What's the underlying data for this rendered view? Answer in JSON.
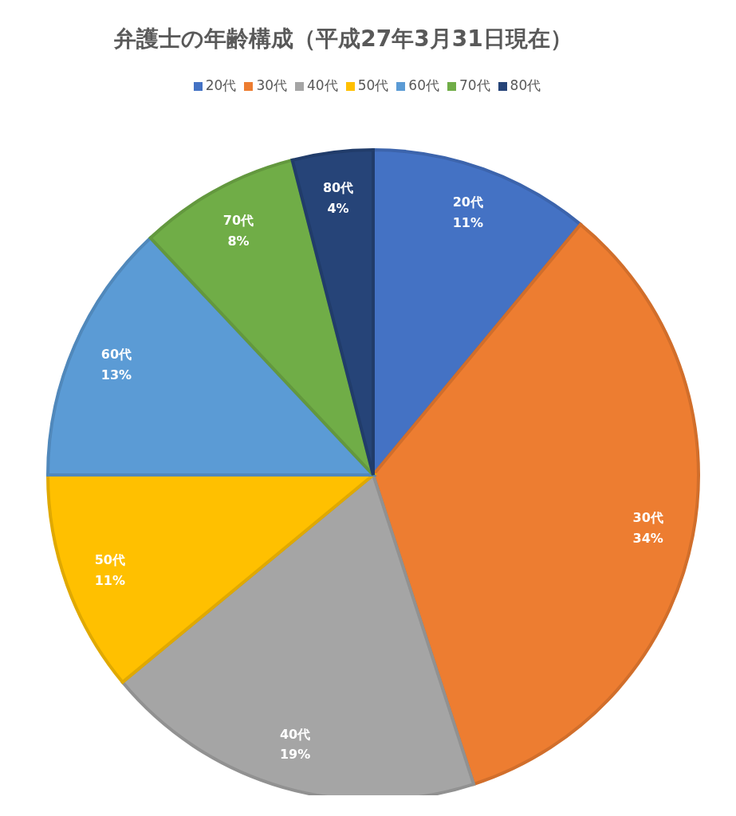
{
  "chart_data": {
    "type": "pie",
    "title": "弁護士の年齢構成（平成27年3月31日現在）",
    "categories": [
      "20代",
      "30代",
      "40代",
      "50代",
      "60代",
      "70代",
      "80代"
    ],
    "values": [
      11,
      34,
      19,
      11,
      13,
      8,
      4
    ],
    "value_labels": [
      "11%",
      "34%",
      "19%",
      "11%",
      "13%",
      "8%",
      "4%"
    ],
    "colors": [
      "#4472c4",
      "#ed7d31",
      "#a5a5a5",
      "#ffc000",
      "#5b9bd5",
      "#70ad47",
      "#264478"
    ],
    "legend": "top"
  }
}
